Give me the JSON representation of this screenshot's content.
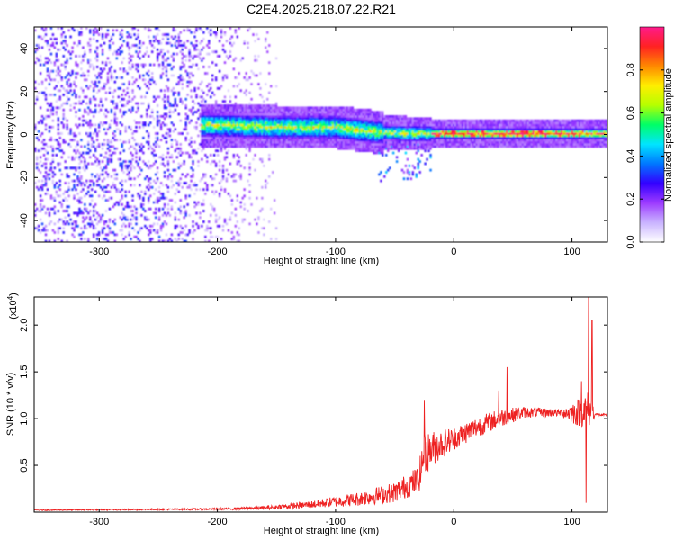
{
  "title": "C2E4.2025.218.07.22.R21",
  "chart_data": [
    {
      "type": "heatmap",
      "xlabel": "Height of straight line (km)",
      "ylabel": "Frequency (Hz)",
      "xlim": [
        -355,
        130
      ],
      "ylim": [
        -50,
        50
      ],
      "xticks": [
        -300,
        -200,
        -100,
        0,
        100
      ],
      "yticks": [
        -40,
        -20,
        0,
        20,
        40
      ],
      "colorbar": {
        "label": "Normalized spectral amplitude",
        "range": [
          0,
          1
        ],
        "ticks": [
          0.0,
          0.2,
          0.4,
          0.6,
          0.8
        ],
        "colormap": [
          "#ffffff",
          "#c9b3ff",
          "#9d3bff",
          "#3300ff",
          "#0077ff",
          "#00e5ff",
          "#00ff66",
          "#b6ff00",
          "#ffee00",
          "#ff8800",
          "#ff2222",
          "#ff1a8c"
        ]
      },
      "band": {
        "center_hz": [
          {
            "x": -215,
            "y": 4
          },
          {
            "x": -150,
            "y": 3
          },
          {
            "x": -100,
            "y": 3
          },
          {
            "x": -70,
            "y": 1
          },
          {
            "x": -40,
            "y": 0
          },
          {
            "x": 0,
            "y": 0
          },
          {
            "x": 130,
            "y": 0
          }
        ],
        "onset_km": -215,
        "noise_region_km": [
          -355,
          -150
        ],
        "peak_region_km": [
          -20,
          110
        ]
      }
    },
    {
      "type": "line",
      "xlabel": "Height of straight line (km)",
      "ylabel": "SNR (10 * v/v)",
      "y_multiplier": "(x10",
      "y_multiplier_exp": "4",
      "y_multiplier_close": ")",
      "xlim": [
        -355,
        130
      ],
      "ylim": [
        0,
        2.3
      ],
      "xticks": [
        -300,
        -200,
        -100,
        0,
        100
      ],
      "yticks": [
        0.5,
        1.0,
        1.5,
        2.0
      ],
      "ytick_labels": [
        "0.5",
        "1.0",
        "1.5",
        "2.0"
      ],
      "series": [
        {
          "color": "#ee2222",
          "envelope": [
            {
              "x": -355,
              "base": 0.02,
              "amp": 0.01
            },
            {
              "x": -200,
              "base": 0.03,
              "amp": 0.02
            },
            {
              "x": -160,
              "base": 0.04,
              "amp": 0.04
            },
            {
              "x": -120,
              "base": 0.07,
              "amp": 0.08
            },
            {
              "x": -80,
              "base": 0.12,
              "amp": 0.15
            },
            {
              "x": -50,
              "base": 0.18,
              "amp": 0.22
            },
            {
              "x": -30,
              "base": 0.3,
              "amp": 0.3
            },
            {
              "x": -25,
              "base": 0.55,
              "amp": 0.45
            },
            {
              "x": -15,
              "base": 0.65,
              "amp": 0.35
            },
            {
              "x": 0,
              "base": 0.75,
              "amp": 0.25
            },
            {
              "x": 20,
              "base": 0.88,
              "amp": 0.22
            },
            {
              "x": 40,
              "base": 0.98,
              "amp": 0.2
            },
            {
              "x": 60,
              "base": 1.05,
              "amp": 0.12
            },
            {
              "x": 90,
              "base": 1.05,
              "amp": 0.08
            },
            {
              "x": 105,
              "base": 1.02,
              "amp": 0.3
            },
            {
              "x": 115,
              "base": 1.05,
              "amp": 0.4
            },
            {
              "x": 120,
              "base": 1.04,
              "amp": 0.03
            },
            {
              "x": 130,
              "base": 1.03,
              "amp": 0.03
            }
          ],
          "spikes": [
            {
              "x": -25,
              "y": 1.2
            },
            {
              "x": 38,
              "y": 1.3
            },
            {
              "x": 45,
              "y": 1.55
            },
            {
              "x": 108,
              "y": 1.4
            },
            {
              "x": 112,
              "y": 0.1
            },
            {
              "x": 114,
              "y": 2.3
            },
            {
              "x": 117,
              "y": 2.05
            }
          ]
        }
      ]
    }
  ]
}
